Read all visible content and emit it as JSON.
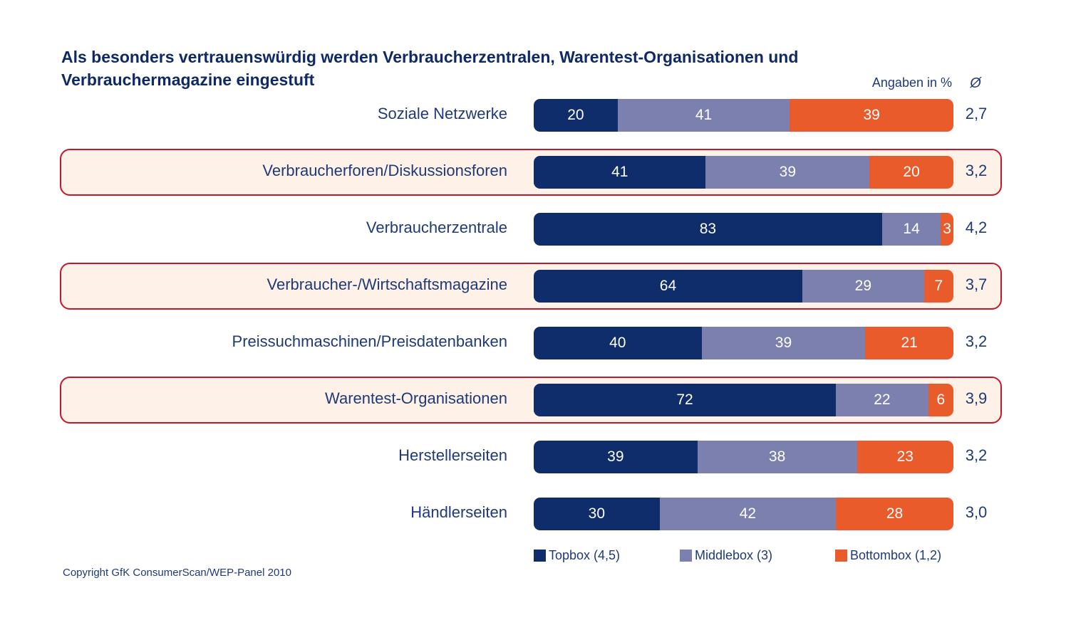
{
  "title": "Als besonders vertrauenswürdig werden Verbraucherzentralen, Warentest-Organisationen und Verbrauchermagazine eingestuft",
  "unit_label": "Angaben in %",
  "avg_header": "Ø",
  "copyright": "Copyright GfK ConsumerScan/WEP-Panel 2010",
  "colors": {
    "topbox": "#0f2d6b",
    "middlebox": "#7b80ae",
    "bottombox": "#e95b2b",
    "highlight_border": "#c4172b",
    "highlight_fill": "#fdf1e8"
  },
  "chart_data": {
    "type": "bar",
    "orientation": "horizontal",
    "stacked": true,
    "categories": [
      "Soziale Netzwerke",
      "Verbraucherforen/Diskussionsforen",
      "Verbraucherzentrale",
      "Verbraucher-/Wirtschaftsmagazine",
      "Preissuchmaschinen/Preisdatenbanken",
      "Warentest-Organisationen",
      "Herstellerseiten",
      "Händlerseiten"
    ],
    "series": [
      {
        "name": "Topbox (4,5)",
        "values": [
          20,
          41,
          83,
          64,
          40,
          72,
          39,
          30
        ]
      },
      {
        "name": "Middlebox (3)",
        "values": [
          41,
          39,
          14,
          29,
          39,
          22,
          38,
          42
        ]
      },
      {
        "name": "Bottombox (1,2)",
        "values": [
          39,
          20,
          3,
          7,
          21,
          6,
          23,
          28
        ]
      }
    ],
    "averages": [
      "2,7",
      "3,2",
      "4,2",
      "3,7",
      "3,2",
      "3,9",
      "3,2",
      "3,0"
    ],
    "highlighted": [
      false,
      true,
      false,
      true,
      false,
      true,
      false,
      false
    ],
    "xlim": [
      0,
      100
    ],
    "legend_position": "bottom"
  }
}
